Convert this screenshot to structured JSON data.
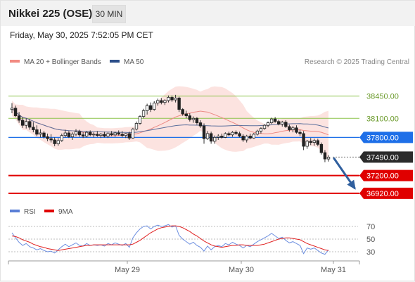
{
  "header": {
    "title": "Nikkei 225 (OSE)",
    "timeframe": "30 MIN",
    "datetime": "Friday, May 30, 2025 7:52:05 PM CET"
  },
  "legend": [
    {
      "label": "MA 20 + Bollinger Bands",
      "color": "#f28b82"
    },
    {
      "label": "MA 50",
      "color": "#2c4f8a"
    }
  ],
  "attribution": "Research © 2025 Trading Central",
  "rsi_legend": [
    {
      "label": "RSI",
      "color": "#5a7fd6"
    },
    {
      "label": "9MA",
      "color": "#e00000"
    }
  ],
  "colors": {
    "resistance_line": "#8bc34a",
    "pivot_line": "#1e6fe8",
    "support_line": "#e00000",
    "last_price_tag": "#2b2b2b",
    "arrow": "#2f5f9e",
    "bollinger_fill": "#fbd9d6"
  },
  "chart_data": {
    "type": "candlestick",
    "x_ticks": [
      "May 29",
      "May 30",
      "May 31"
    ],
    "y_range": [
      36830,
      38900
    ],
    "price_levels": [
      {
        "label": "38450.00",
        "value": 38450,
        "kind": "resistance"
      },
      {
        "label": "38100.00",
        "value": 38100,
        "kind": "resistance"
      },
      {
        "label": "37800.00",
        "value": 37800,
        "kind": "pivot"
      },
      {
        "label": "37490.00",
        "value": 37490,
        "kind": "last"
      },
      {
        "label": "37200.00",
        "value": 37200,
        "kind": "support"
      },
      {
        "label": "36920.00",
        "value": 36920,
        "kind": "support"
      }
    ],
    "forecast_arrow": {
      "from": 37490,
      "to": 36960,
      "direction": "down"
    },
    "candles": [
      {
        "o": 38240,
        "h": 38340,
        "l": 38180,
        "c": 38260
      },
      {
        "o": 38260,
        "h": 38300,
        "l": 38120,
        "c": 38140
      },
      {
        "o": 38140,
        "h": 38200,
        "l": 38030,
        "c": 38070
      },
      {
        "o": 38070,
        "h": 38120,
        "l": 37950,
        "c": 37990
      },
      {
        "o": 37990,
        "h": 38100,
        "l": 37940,
        "c": 38050
      },
      {
        "o": 38050,
        "h": 38090,
        "l": 37920,
        "c": 37960
      },
      {
        "o": 37960,
        "h": 38040,
        "l": 37880,
        "c": 37920
      },
      {
        "o": 37920,
        "h": 37990,
        "l": 37820,
        "c": 37850
      },
      {
        "o": 37850,
        "h": 37930,
        "l": 37800,
        "c": 37870
      },
      {
        "o": 37870,
        "h": 37900,
        "l": 37780,
        "c": 37810
      },
      {
        "o": 37810,
        "h": 37860,
        "l": 37740,
        "c": 37780
      },
      {
        "o": 37780,
        "h": 37850,
        "l": 37720,
        "c": 37760
      },
      {
        "o": 37760,
        "h": 37800,
        "l": 37660,
        "c": 37700
      },
      {
        "o": 37700,
        "h": 37790,
        "l": 37670,
        "c": 37750
      },
      {
        "o": 37750,
        "h": 37860,
        "l": 37730,
        "c": 37830
      },
      {
        "o": 37830,
        "h": 37920,
        "l": 37800,
        "c": 37870
      },
      {
        "o": 37870,
        "h": 37900,
        "l": 37790,
        "c": 37810
      },
      {
        "o": 37810,
        "h": 37880,
        "l": 37760,
        "c": 37850
      },
      {
        "o": 37850,
        "h": 37930,
        "l": 37820,
        "c": 37890
      },
      {
        "o": 37890,
        "h": 37920,
        "l": 37810,
        "c": 37840
      },
      {
        "o": 37840,
        "h": 37880,
        "l": 37790,
        "c": 37820
      },
      {
        "o": 37820,
        "h": 37900,
        "l": 37800,
        "c": 37880
      },
      {
        "o": 37880,
        "h": 37910,
        "l": 37820,
        "c": 37840
      },
      {
        "o": 37840,
        "h": 37880,
        "l": 37800,
        "c": 37850
      },
      {
        "o": 37850,
        "h": 37900,
        "l": 37810,
        "c": 37830
      },
      {
        "o": 37830,
        "h": 37870,
        "l": 37790,
        "c": 37850
      },
      {
        "o": 37850,
        "h": 37890,
        "l": 37800,
        "c": 37820
      },
      {
        "o": 37820,
        "h": 37880,
        "l": 37790,
        "c": 37860
      },
      {
        "o": 37860,
        "h": 37900,
        "l": 37820,
        "c": 37840
      },
      {
        "o": 37840,
        "h": 37890,
        "l": 37810,
        "c": 37870
      },
      {
        "o": 37870,
        "h": 37910,
        "l": 37830,
        "c": 37850
      },
      {
        "o": 37850,
        "h": 37900,
        "l": 37800,
        "c": 37830
      },
      {
        "o": 37830,
        "h": 37870,
        "l": 37790,
        "c": 37860
      },
      {
        "o": 37860,
        "h": 37890,
        "l": 37760,
        "c": 37790
      },
      {
        "o": 37790,
        "h": 37950,
        "l": 37780,
        "c": 37930
      },
      {
        "o": 37930,
        "h": 38050,
        "l": 37910,
        "c": 38020
      },
      {
        "o": 38020,
        "h": 38150,
        "l": 38000,
        "c": 38130
      },
      {
        "o": 38130,
        "h": 38250,
        "l": 38100,
        "c": 38220
      },
      {
        "o": 38220,
        "h": 38330,
        "l": 38160,
        "c": 38300
      },
      {
        "o": 38300,
        "h": 38350,
        "l": 38200,
        "c": 38240
      },
      {
        "o": 38240,
        "h": 38370,
        "l": 38220,
        "c": 38340
      },
      {
        "o": 38340,
        "h": 38410,
        "l": 38300,
        "c": 38380
      },
      {
        "o": 38380,
        "h": 38420,
        "l": 38320,
        "c": 38350
      },
      {
        "o": 38350,
        "h": 38400,
        "l": 38310,
        "c": 38380
      },
      {
        "o": 38380,
        "h": 38460,
        "l": 38350,
        "c": 38430
      },
      {
        "o": 38430,
        "h": 38460,
        "l": 38360,
        "c": 38390
      },
      {
        "o": 38390,
        "h": 38470,
        "l": 38350,
        "c": 38420
      },
      {
        "o": 38420,
        "h": 38440,
        "l": 38200,
        "c": 38240
      },
      {
        "o": 38240,
        "h": 38260,
        "l": 38140,
        "c": 38170
      },
      {
        "o": 38170,
        "h": 38220,
        "l": 38100,
        "c": 38140
      },
      {
        "o": 38140,
        "h": 38180,
        "l": 38050,
        "c": 38080
      },
      {
        "o": 38080,
        "h": 38130,
        "l": 38030,
        "c": 38100
      },
      {
        "o": 38100,
        "h": 38120,
        "l": 38000,
        "c": 38030
      },
      {
        "o": 38030,
        "h": 38070,
        "l": 37950,
        "c": 37980
      },
      {
        "o": 37980,
        "h": 38020,
        "l": 37700,
        "c": 37780
      },
      {
        "o": 37780,
        "h": 37900,
        "l": 37760,
        "c": 37860
      },
      {
        "o": 37860,
        "h": 37890,
        "l": 37700,
        "c": 37740
      },
      {
        "o": 37740,
        "h": 37830,
        "l": 37700,
        "c": 37800
      },
      {
        "o": 37800,
        "h": 37850,
        "l": 37760,
        "c": 37820
      },
      {
        "o": 37820,
        "h": 37860,
        "l": 37780,
        "c": 37800
      },
      {
        "o": 37800,
        "h": 37880,
        "l": 37790,
        "c": 37860
      },
      {
        "o": 37860,
        "h": 37890,
        "l": 37820,
        "c": 37840
      },
      {
        "o": 37840,
        "h": 37900,
        "l": 37810,
        "c": 37880
      },
      {
        "o": 37880,
        "h": 37910,
        "l": 37840,
        "c": 37860
      },
      {
        "o": 37860,
        "h": 37890,
        "l": 37800,
        "c": 37820
      },
      {
        "o": 37820,
        "h": 37850,
        "l": 37730,
        "c": 37760
      },
      {
        "o": 37760,
        "h": 37840,
        "l": 37720,
        "c": 37820
      },
      {
        "o": 37820,
        "h": 37860,
        "l": 37770,
        "c": 37790
      },
      {
        "o": 37790,
        "h": 37870,
        "l": 37780,
        "c": 37850
      },
      {
        "o": 37850,
        "h": 37920,
        "l": 37830,
        "c": 37900
      },
      {
        "o": 37900,
        "h": 37960,
        "l": 37860,
        "c": 37940
      },
      {
        "o": 37940,
        "h": 38010,
        "l": 37920,
        "c": 37990
      },
      {
        "o": 37990,
        "h": 38050,
        "l": 37960,
        "c": 38030
      },
      {
        "o": 38030,
        "h": 38110,
        "l": 38010,
        "c": 38090
      },
      {
        "o": 38090,
        "h": 38120,
        "l": 38030,
        "c": 38050
      },
      {
        "o": 38050,
        "h": 38080,
        "l": 37990,
        "c": 38010
      },
      {
        "o": 38010,
        "h": 38060,
        "l": 37970,
        "c": 38040
      },
      {
        "o": 38040,
        "h": 38070,
        "l": 37950,
        "c": 37970
      },
      {
        "o": 37970,
        "h": 38000,
        "l": 37890,
        "c": 37920
      },
      {
        "o": 37920,
        "h": 37980,
        "l": 37880,
        "c": 37950
      },
      {
        "o": 37950,
        "h": 37990,
        "l": 37860,
        "c": 37880
      },
      {
        "o": 37880,
        "h": 37920,
        "l": 37820,
        "c": 37860
      },
      {
        "o": 37860,
        "h": 37900,
        "l": 37600,
        "c": 37660
      },
      {
        "o": 37660,
        "h": 37760,
        "l": 37620,
        "c": 37740
      },
      {
        "o": 37740,
        "h": 37790,
        "l": 37680,
        "c": 37720
      },
      {
        "o": 37720,
        "h": 37780,
        "l": 37670,
        "c": 37750
      },
      {
        "o": 37750,
        "h": 37780,
        "l": 37660,
        "c": 37690
      },
      {
        "o": 37690,
        "h": 37720,
        "l": 37530,
        "c": 37560
      },
      {
        "o": 37560,
        "h": 37600,
        "l": 37410,
        "c": 37460
      },
      {
        "o": 37460,
        "h": 37520,
        "l": 37420,
        "c": 37490
      }
    ],
    "rsi": {
      "levels": [
        70,
        50,
        30
      ],
      "series": [
        {
          "name": "RSI",
          "values": [
            60,
            52,
            45,
            40,
            43,
            38,
            36,
            33,
            35,
            32,
            30,
            31,
            28,
            33,
            38,
            42,
            38,
            41,
            44,
            40,
            39,
            43,
            40,
            41,
            40,
            41,
            39,
            43,
            41,
            44,
            42,
            40,
            43,
            37,
            52,
            60,
            66,
            70,
            71,
            66,
            70,
            72,
            70,
            71,
            73,
            69,
            71,
            56,
            50,
            46,
            42,
            45,
            40,
            37,
            31,
            39,
            33,
            38,
            40,
            38,
            43,
            41,
            45,
            42,
            40,
            36,
            40,
            38,
            42,
            46,
            49,
            52,
            55,
            59,
            55,
            51,
            53,
            48,
            44,
            46,
            43,
            40,
            27,
            36,
            34,
            36,
            32,
            28,
            26,
            33
          ]
        },
        {
          "name": "9MA",
          "values": [
            55,
            54,
            52,
            49,
            47,
            45,
            42,
            40,
            38,
            37,
            35,
            34,
            33,
            32,
            33,
            34,
            35,
            36,
            37,
            38,
            39,
            40,
            40,
            41,
            41,
            41,
            41,
            41,
            41,
            41,
            41,
            41,
            41,
            41,
            42,
            45,
            48,
            52,
            56,
            60,
            63,
            66,
            68,
            69,
            70,
            71,
            71,
            70,
            68,
            65,
            62,
            58,
            55,
            51,
            47,
            44,
            41,
            39,
            38,
            37,
            38,
            39,
            40,
            40,
            41,
            41,
            40,
            40,
            40,
            40,
            41,
            42,
            44,
            46,
            48,
            50,
            51,
            52,
            52,
            51,
            50,
            49,
            46,
            43,
            41,
            39,
            37,
            35,
            33,
            32
          ]
        }
      ]
    }
  }
}
